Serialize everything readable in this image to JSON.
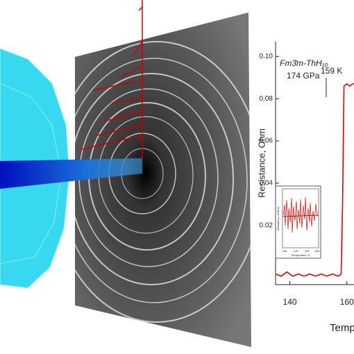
{
  "chart_data": {
    "type": "line",
    "title": "Fm3̄m-ThH₁₀",
    "annotations": [
      "174 GPa",
      "159 K"
    ],
    "y_label": "Resistance, Ohm",
    "x_label": "Temperature",
    "x": [
      135,
      137,
      139,
      141,
      143,
      145,
      147,
      149,
      151,
      153,
      155,
      157,
      158,
      158.5,
      159,
      160,
      161,
      162,
      163
    ],
    "series": [
      {
        "color": "#e00000",
        "values": [
          -0.003,
          -0.004,
          -0.002,
          -0.004,
          -0.003,
          -0.004,
          -0.003,
          -0.004,
          -0.003,
          -0.004,
          -0.003,
          -0.004,
          -0.003,
          0.03,
          0.086,
          0.087,
          0.086,
          0.087,
          0.087
        ]
      }
    ],
    "xlim": [
      135,
      163
    ],
    "xticks": [
      140,
      160
    ],
    "ylim": [
      -0.008,
      0.107
    ],
    "yticks": [
      0.02,
      0.04,
      0.06,
      0.08,
      {
        "value": 0.1,
        "label": "0.10"
      }
    ],
    "inset": {
      "x_label": "Temperature, K",
      "y_label": "Resistance, mOhm",
      "xticks": [
        "130",
        "140",
        "150",
        "160"
      ]
    }
  }
}
